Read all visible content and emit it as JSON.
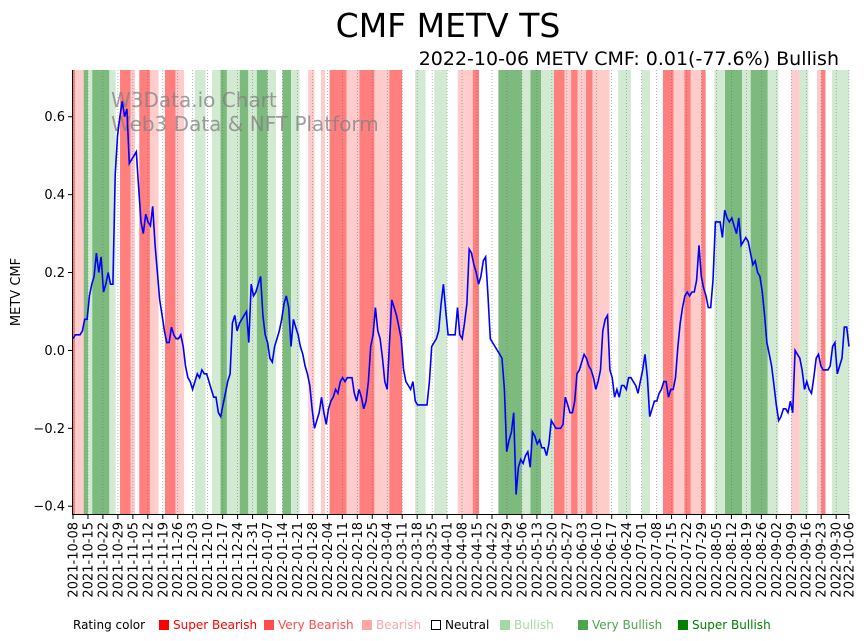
{
  "chart_data": {
    "type": "line",
    "title": "CMF METV TS",
    "subtitle": "2022-10-06 METV CMF: 0.01(-77.6%) Bullish",
    "ylabel": "METV CMF",
    "xlabel": "",
    "ylim": [
      -0.42,
      0.72
    ],
    "yticks": [
      -0.4,
      -0.2,
      0.0,
      0.2,
      0.4,
      0.6
    ],
    "ytick_labels": [
      "−0.4",
      "−0.2",
      "0.0",
      "0.2",
      "0.4",
      "0.6"
    ],
    "x_start": "2021-10-08",
    "x_end": "2022-10-06",
    "xtick_labels": [
      "2021-10-08",
      "2021-10-15",
      "2021-10-22",
      "2021-10-29",
      "2021-11-05",
      "2021-11-12",
      "2021-11-19",
      "2021-11-26",
      "2021-12-03",
      "2021-12-10",
      "2021-12-17",
      "2021-12-24",
      "2021-12-31",
      "2022-01-07",
      "2022-01-14",
      "2022-01-21",
      "2022-01-28",
      "2022-02-04",
      "2022-02-11",
      "2022-02-18",
      "2022-02-25",
      "2022-03-04",
      "2022-03-11",
      "2022-03-18",
      "2022-03-25",
      "2022-04-01",
      "2022-04-08",
      "2022-04-15",
      "2022-04-22",
      "2022-04-29",
      "2022-05-06",
      "2022-05-13",
      "2022-05-20",
      "2022-05-27",
      "2022-06-03",
      "2022-06-10",
      "2022-06-17",
      "2022-06-24",
      "2022-07-01",
      "2022-07-08",
      "2022-07-15",
      "2022-07-22",
      "2022-07-29",
      "2022-08-05",
      "2022-08-12",
      "2022-08-19",
      "2022-08-26",
      "2022-09-02",
      "2022-09-09",
      "2022-09-16",
      "2022-09-23",
      "2022-09-30",
      "2022-10-06"
    ],
    "series": [
      {
        "name": "METV CMF",
        "color": "#0000ff",
        "values": [
          0.03,
          0.04,
          0.04,
          0.04,
          0.05,
          0.08,
          0.08,
          0.14,
          0.17,
          0.19,
          0.25,
          0.2,
          0.24,
          0.15,
          0.17,
          0.2,
          0.17,
          0.17,
          0.45,
          0.55,
          0.6,
          0.64,
          0.6,
          0.62,
          0.48,
          0.49,
          0.5,
          0.51,
          0.42,
          0.33,
          0.3,
          0.35,
          0.33,
          0.32,
          0.37,
          0.27,
          0.2,
          0.13,
          0.09,
          0.05,
          0.02,
          0.02,
          0.06,
          0.04,
          0.03,
          0.03,
          0.04,
          0.01,
          -0.04,
          -0.07,
          -0.08,
          -0.1,
          -0.08,
          -0.06,
          -0.07,
          -0.05,
          -0.06,
          -0.06,
          -0.08,
          -0.1,
          -0.12,
          -0.12,
          -0.16,
          -0.17,
          -0.14,
          -0.11,
          -0.08,
          -0.06,
          0.07,
          0.09,
          0.05,
          0.07,
          0.08,
          0.09,
          0.1,
          0.02,
          0.17,
          0.14,
          0.15,
          0.17,
          0.19,
          0.09,
          0.04,
          0.02,
          -0.02,
          -0.03,
          0.01,
          0.03,
          0.05,
          0.08,
          0.12,
          0.14,
          0.11,
          0.01,
          0.08,
          0.06,
          0.04,
          0.01,
          -0.01,
          -0.04,
          -0.06,
          -0.09,
          -0.15,
          -0.2,
          -0.18,
          -0.16,
          -0.12,
          -0.16,
          -0.19,
          -0.15,
          -0.13,
          -0.12,
          -0.1,
          -0.11,
          -0.08,
          -0.07,
          -0.08,
          -0.07,
          -0.07,
          -0.07,
          -0.11,
          -0.13,
          -0.1,
          -0.12,
          -0.15,
          -0.13,
          -0.08,
          0.01,
          0.04,
          0.11,
          0.05,
          0.03,
          -0.02,
          -0.08,
          -0.1,
          0.02,
          0.13,
          0.11,
          0.09,
          0.06,
          0.03,
          -0.05,
          -0.08,
          -0.09,
          -0.1,
          -0.08,
          -0.13,
          -0.14,
          -0.14,
          -0.14,
          -0.14,
          -0.14,
          -0.08,
          0.01,
          0.02,
          0.03,
          0.05,
          0.12,
          0.17,
          0.1,
          0.04,
          0.04,
          0.04,
          0.04,
          0.11,
          0.04,
          0.03,
          0.07,
          0.12,
          0.26,
          0.25,
          0.22,
          0.2,
          0.17,
          0.19,
          0.23,
          0.24,
          0.14,
          0.03,
          0.02,
          0.01,
          0.0,
          -0.01,
          -0.02,
          -0.1,
          -0.26,
          -0.23,
          -0.21,
          -0.16,
          -0.37,
          -0.3,
          -0.28,
          -0.29,
          -0.27,
          -0.26,
          -0.3,
          -0.21,
          -0.22,
          -0.24,
          -0.23,
          -0.25,
          -0.25,
          -0.27,
          -0.24,
          -0.18,
          -0.19,
          -0.2,
          -0.2,
          -0.2,
          -0.19,
          -0.12,
          -0.14,
          -0.16,
          -0.16,
          -0.13,
          -0.06,
          -0.05,
          -0.03,
          -0.01,
          -0.02,
          -0.04,
          -0.05,
          -0.07,
          -0.1,
          -0.08,
          -0.05,
          0.05,
          0.08,
          0.09,
          -0.05,
          -0.07,
          -0.12,
          -0.1,
          -0.12,
          -0.09,
          -0.09,
          -0.1,
          -0.07,
          -0.07,
          -0.08,
          -0.09,
          -0.11,
          -0.08,
          -0.05,
          -0.01,
          -0.07,
          -0.17,
          -0.15,
          -0.13,
          -0.13,
          -0.11,
          -0.1,
          -0.08,
          -0.08,
          -0.12,
          -0.1,
          -0.1,
          -0.07,
          0.01,
          0.07,
          0.11,
          0.14,
          0.15,
          0.14,
          0.15,
          0.15,
          0.18,
          0.27,
          0.19,
          0.16,
          0.14,
          0.11,
          0.11,
          0.18,
          0.33,
          0.33,
          0.33,
          0.29,
          0.36,
          0.34,
          0.33,
          0.34,
          0.32,
          0.3,
          0.34,
          0.27,
          0.28,
          0.29,
          0.28,
          0.25,
          0.22,
          0.23,
          0.2,
          0.19,
          0.15,
          0.09,
          0.02,
          -0.01,
          -0.04,
          -0.09,
          -0.14,
          -0.18,
          -0.17,
          -0.15,
          -0.15,
          -0.16,
          -0.13,
          -0.16,
          0.0,
          -0.01,
          -0.02,
          -0.05,
          -0.1,
          -0.08,
          -0.1,
          -0.11,
          -0.07,
          -0.02,
          -0.01,
          -0.04,
          -0.05,
          -0.05,
          -0.05,
          -0.04,
          0.01,
          0.02,
          -0.06,
          -0.04,
          -0.02,
          0.06,
          0.06,
          0.01
        ]
      }
    ],
    "rating_bands": [
      {
        "from": 0,
        "to": 1,
        "rating": "very-bearish"
      },
      {
        "from": 1,
        "to": 5,
        "rating": "bearish"
      },
      {
        "from": 5,
        "to": 7,
        "rating": "very-bullish"
      },
      {
        "from": 7,
        "to": 9,
        "rating": "bullish"
      },
      {
        "from": 9,
        "to": 17,
        "rating": "very-bullish"
      },
      {
        "from": 17,
        "to": 20,
        "rating": "bullish"
      },
      {
        "from": 20,
        "to": 22,
        "rating": "neutral"
      },
      {
        "from": 22,
        "to": 27,
        "rating": "very-bearish"
      },
      {
        "from": 27,
        "to": 29,
        "rating": "bearish"
      },
      {
        "from": 29,
        "to": 31,
        "rating": "neutral"
      },
      {
        "from": 31,
        "to": 36,
        "rating": "very-bearish"
      },
      {
        "from": 36,
        "to": 40,
        "rating": "bearish"
      },
      {
        "from": 40,
        "to": 43,
        "rating": "neutral"
      },
      {
        "from": 43,
        "to": 48,
        "rating": "very-bearish"
      },
      {
        "from": 48,
        "to": 52,
        "rating": "bearish"
      },
      {
        "from": 52,
        "to": 57,
        "rating": "neutral"
      },
      {
        "from": 57,
        "to": 62,
        "rating": "bullish"
      },
      {
        "from": 62,
        "to": 65,
        "rating": "neutral"
      },
      {
        "from": 65,
        "to": 69,
        "rating": "bullish"
      },
      {
        "from": 69,
        "to": 72,
        "rating": "very-bullish"
      },
      {
        "from": 72,
        "to": 78,
        "rating": "bullish"
      },
      {
        "from": 78,
        "to": 82,
        "rating": "very-bullish"
      },
      {
        "from": 82,
        "to": 86,
        "rating": "bullish"
      },
      {
        "from": 86,
        "to": 91,
        "rating": "very-bullish"
      },
      {
        "from": 91,
        "to": 95,
        "rating": "bullish"
      },
      {
        "from": 95,
        "to": 98,
        "rating": "neutral"
      },
      {
        "from": 98,
        "to": 102,
        "rating": "very-bullish"
      },
      {
        "from": 102,
        "to": 106,
        "rating": "bullish"
      },
      {
        "from": 106,
        "to": 110,
        "rating": "neutral"
      },
      {
        "from": 110,
        "to": 113,
        "rating": "bearish"
      },
      {
        "from": 113,
        "to": 116,
        "rating": "neutral"
      },
      {
        "from": 116,
        "to": 118,
        "rating": "bearish"
      },
      {
        "from": 118,
        "to": 120,
        "rating": "neutral"
      },
      {
        "from": 120,
        "to": 128,
        "rating": "very-bearish"
      },
      {
        "from": 128,
        "to": 134,
        "rating": "bearish"
      },
      {
        "from": 134,
        "to": 141,
        "rating": "very-bearish"
      },
      {
        "from": 141,
        "to": 148,
        "rating": "bearish"
      },
      {
        "from": 148,
        "to": 154,
        "rating": "very-bearish"
      },
      {
        "from": 154,
        "to": 160,
        "rating": "neutral"
      },
      {
        "from": 160,
        "to": 165,
        "rating": "bullish"
      },
      {
        "from": 165,
        "to": 169,
        "rating": "neutral"
      },
      {
        "from": 169,
        "to": 175,
        "rating": "bullish"
      },
      {
        "from": 175,
        "to": 180,
        "rating": "neutral"
      },
      {
        "from": 180,
        "to": 187,
        "rating": "bearish"
      },
      {
        "from": 187,
        "to": 190,
        "rating": "very-bearish"
      },
      {
        "from": 190,
        "to": 199,
        "rating": "neutral"
      },
      {
        "from": 199,
        "to": 210,
        "rating": "very-bullish"
      },
      {
        "from": 210,
        "to": 214,
        "rating": "bullish"
      },
      {
        "from": 214,
        "to": 219,
        "rating": "very-bullish"
      },
      {
        "from": 219,
        "to": 225,
        "rating": "bullish"
      },
      {
        "from": 225,
        "to": 230,
        "rating": "very-bearish"
      },
      {
        "from": 230,
        "to": 233,
        "rating": "bearish"
      },
      {
        "from": 233,
        "to": 236,
        "rating": "very-bearish"
      },
      {
        "from": 236,
        "to": 240,
        "rating": "bearish"
      },
      {
        "from": 240,
        "to": 243,
        "rating": "very-bearish"
      },
      {
        "from": 243,
        "to": 251,
        "rating": "bearish"
      },
      {
        "from": 251,
        "to": 255,
        "rating": "neutral"
      },
      {
        "from": 255,
        "to": 261,
        "rating": "bullish"
      },
      {
        "from": 261,
        "to": 266,
        "rating": "neutral"
      },
      {
        "from": 266,
        "to": 270,
        "rating": "bullish"
      },
      {
        "from": 270,
        "to": 276,
        "rating": "neutral"
      },
      {
        "from": 276,
        "to": 281,
        "rating": "very-bearish"
      },
      {
        "from": 281,
        "to": 286,
        "rating": "bearish"
      },
      {
        "from": 286,
        "to": 289,
        "rating": "very-bearish"
      },
      {
        "from": 289,
        "to": 294,
        "rating": "bearish"
      },
      {
        "from": 294,
        "to": 296,
        "rating": "very-bearish"
      },
      {
        "from": 296,
        "to": 300,
        "rating": "neutral"
      },
      {
        "from": 300,
        "to": 305,
        "rating": "bullish"
      },
      {
        "from": 305,
        "to": 313,
        "rating": "very-bullish"
      },
      {
        "from": 313,
        "to": 317,
        "rating": "bullish"
      },
      {
        "from": 317,
        "to": 325,
        "rating": "very-bullish"
      },
      {
        "from": 325,
        "to": 330,
        "rating": "bullish"
      },
      {
        "from": 330,
        "to": 336,
        "rating": "neutral"
      },
      {
        "from": 336,
        "to": 340,
        "rating": "bearish"
      },
      {
        "from": 340,
        "to": 344,
        "rating": "bullish"
      },
      {
        "from": 344,
        "to": 348,
        "rating": "neutral"
      },
      {
        "from": 348,
        "to": 350,
        "rating": "bearish"
      },
      {
        "from": 350,
        "to": 352,
        "rating": "very-bearish"
      },
      {
        "from": 352,
        "to": 355,
        "rating": "neutral"
      },
      {
        "from": 355,
        "to": 363,
        "rating": "bullish"
      }
    ],
    "band_colors": {
      "super-bearish": "#ff0000",
      "very-bearish": "#ff7f7f",
      "bearish": "#ffcccc",
      "neutral": "#ffffff",
      "bullish": "#d2ead2",
      "very-bullish": "#7dba7d",
      "super-bullish": "#2e8b2e"
    }
  },
  "watermark": {
    "line1": "W3Data.io Chart",
    "line2": "Web3 Data & NFT Platform"
  },
  "legend": {
    "heading": "Rating color",
    "items": [
      {
        "label": "Super Bearish",
        "color": "#ff0000"
      },
      {
        "label": "Very Bearish",
        "color": "#ff4c4c"
      },
      {
        "label": "Bearish",
        "color": "#ffa6a6"
      },
      {
        "label": "Neutral",
        "color": "#000000"
      },
      {
        "label": "Bullish",
        "color": "#a6d8a6"
      },
      {
        "label": "Very Bullish",
        "color": "#4ca64c"
      },
      {
        "label": "Super Bullish",
        "color": "#007f00"
      }
    ]
  }
}
